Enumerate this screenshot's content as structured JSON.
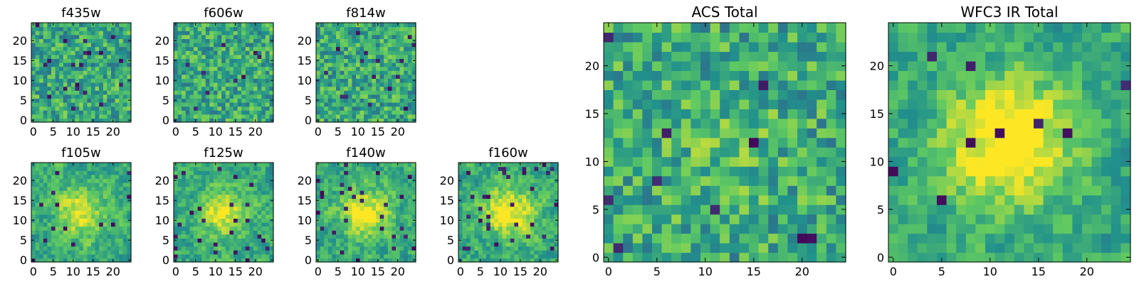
{
  "figure": {
    "background": "#ffffff"
  },
  "colormap": {
    "name": "viridis",
    "stops": [
      "#440154",
      "#3b528b",
      "#21918c",
      "#5ec962",
      "#fde725"
    ]
  },
  "chart_data": [
    {
      "type": "heatmap",
      "title": "f435w",
      "grid_size": 25,
      "xticks": [
        0,
        5,
        10,
        15,
        20
      ],
      "yticks": [
        0,
        5,
        10,
        15,
        20
      ],
      "xlim": [
        0,
        25
      ],
      "ylim": [
        0,
        25
      ],
      "seed": 11,
      "smooth": 0,
      "center_peak": 0.0,
      "dark_fraction": 0.03
    },
    {
      "type": "heatmap",
      "title": "f606w",
      "grid_size": 25,
      "xticks": [
        0,
        5,
        10,
        15,
        20
      ],
      "yticks": [
        0,
        5,
        10,
        15,
        20
      ],
      "xlim": [
        0,
        25
      ],
      "ylim": [
        0,
        25
      ],
      "seed": 23,
      "smooth": 0,
      "center_peak": 0.0,
      "dark_fraction": 0.02
    },
    {
      "type": "heatmap",
      "title": "f814w",
      "grid_size": 25,
      "xticks": [
        0,
        5,
        10,
        15,
        20
      ],
      "yticks": [
        0,
        5,
        10,
        15,
        20
      ],
      "xlim": [
        0,
        25
      ],
      "ylim": [
        0,
        25
      ],
      "seed": 37,
      "smooth": 0,
      "center_peak": 0.0,
      "dark_fraction": 0.02
    },
    {
      "type": "heatmap",
      "title": "f105w",
      "grid_size": 25,
      "xticks": [
        0,
        5,
        10,
        15,
        20
      ],
      "yticks": [
        0,
        5,
        10,
        15,
        20
      ],
      "xlim": [
        0,
        25
      ],
      "ylim": [
        0,
        25
      ],
      "seed": 41,
      "smooth": 1,
      "center_peak": 0.35,
      "dark_fraction": 0.03
    },
    {
      "type": "heatmap",
      "title": "f125w",
      "grid_size": 25,
      "xticks": [
        0,
        5,
        10,
        15,
        20
      ],
      "yticks": [
        0,
        5,
        10,
        15,
        20
      ],
      "xlim": [
        0,
        25
      ],
      "ylim": [
        0,
        25
      ],
      "seed": 53,
      "smooth": 1,
      "center_peak": 0.35,
      "dark_fraction": 0.03
    },
    {
      "type": "heatmap",
      "title": "f140w",
      "grid_size": 25,
      "xticks": [
        0,
        5,
        10,
        15,
        20
      ],
      "yticks": [
        0,
        5,
        10,
        15,
        20
      ],
      "xlim": [
        0,
        25
      ],
      "ylim": [
        0,
        25
      ],
      "seed": 67,
      "smooth": 1,
      "center_peak": 0.4,
      "dark_fraction": 0.04
    },
    {
      "type": "heatmap",
      "title": "f160w",
      "grid_size": 25,
      "xticks": [
        0,
        5,
        10,
        15,
        20
      ],
      "yticks": [
        0,
        5,
        10,
        15,
        20
      ],
      "xlim": [
        0,
        25
      ],
      "ylim": [
        0,
        25
      ],
      "seed": 79,
      "smooth": 1,
      "center_peak": 0.45,
      "dark_fraction": 0.05
    },
    {
      "type": "heatmap",
      "title": "ACS Total",
      "grid_size": 25,
      "xticks": [
        0,
        5,
        10,
        15,
        20
      ],
      "yticks": [
        0,
        5,
        10,
        15,
        20
      ],
      "xlim": [
        0,
        25
      ],
      "ylim": [
        0,
        25
      ],
      "seed": 97,
      "smooth": 0,
      "center_peak": 0.1,
      "dark_fraction": 0.02
    },
    {
      "type": "heatmap",
      "title": "WFC3 IR Total",
      "grid_size": 25,
      "xticks": [
        0,
        5,
        10,
        15,
        20
      ],
      "yticks": [
        0,
        5,
        10,
        15,
        20
      ],
      "xlim": [
        0,
        25
      ],
      "ylim": [
        0,
        25
      ],
      "seed": 113,
      "smooth": 1,
      "center_peak": 0.55,
      "dark_fraction": 0.02
    }
  ]
}
